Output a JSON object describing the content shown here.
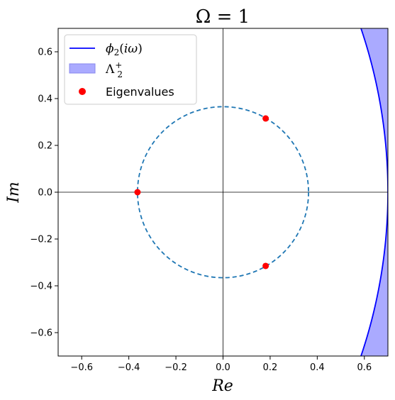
{
  "chart_data": {
    "type": "scatter",
    "title": "Ω = 1",
    "xlabel": "Re",
    "ylabel": "Im",
    "xlim": [
      -0.7,
      0.7
    ],
    "ylim": [
      -0.7,
      0.7
    ],
    "xticks": [
      -0.6,
      -0.4,
      -0.2,
      0.0,
      0.2,
      0.4,
      0.6
    ],
    "yticks": [
      -0.6,
      -0.4,
      -0.2,
      0.0,
      0.2,
      0.4,
      0.6
    ],
    "xtick_labels": [
      "−0.6",
      "−0.4",
      "−0.2",
      "0.0",
      "0.2",
      "0.4",
      "0.6"
    ],
    "ytick_labels": [
      "−0.6",
      "−0.4",
      "−0.2",
      "0.0",
      "0.2",
      "0.4",
      "0.6"
    ],
    "grid": false,
    "legend_position": "top-left",
    "legend": [
      "ϕ2(iω)",
      "Λ2+",
      "Eigenvalues"
    ],
    "curve": {
      "name": "ϕ2(iω)",
      "color": "#0000ff",
      "center": [
        -1.5,
        0
      ],
      "radius": 2.2
    },
    "region": {
      "name": "Λ2+",
      "color": "#aaaaff"
    },
    "circle": {
      "center": [
        0,
        0
      ],
      "radius": 0.363,
      "style": "dashed",
      "color": "#1f77b4"
    },
    "eigenvalues": {
      "name": "Eigenvalues",
      "color": "#ff0000",
      "x": [
        -0.363,
        0.181,
        0.181
      ],
      "y": [
        0.0,
        0.315,
        -0.315
      ]
    }
  }
}
